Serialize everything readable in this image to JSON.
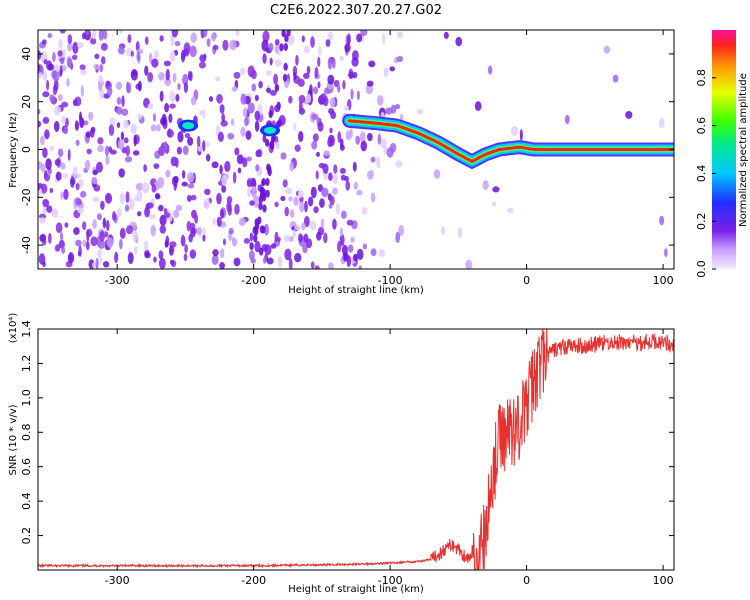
{
  "title": "C2E6.2022.307.20.27.G02",
  "colors": {
    "snr_line": "#e83030",
    "spectrum_low": "#8a2be2",
    "ridge": "#ff2020"
  },
  "chart_data": [
    {
      "type": "heatmap",
      "xlabel": "Height of straight line (km)",
      "ylabel": "Frequency (Hz)",
      "xlim": [
        -358,
        108
      ],
      "ylim": [
        -50,
        50
      ],
      "xticks": [
        -300,
        -200,
        -100,
        0,
        100
      ],
      "yticks": [
        -40,
        -20,
        0,
        20,
        40
      ],
      "colorbar": {
        "label": "Normalized spectral amplitude",
        "range": [
          0,
          1
        ],
        "ticks": [
          "0.0",
          "0.2",
          "0.4",
          "0.6",
          "0.8"
        ],
        "colormap": "rainbow (violet to red)"
      },
      "ridge": {
        "x": [
          -130,
          -110,
          -95,
          -80,
          -65,
          -50,
          -40,
          -30,
          -20,
          -5,
          5,
          30,
          60,
          90,
          108
        ],
        "y": [
          12,
          11,
          10,
          7,
          3,
          -2,
          -5,
          -2,
          0,
          1,
          0,
          0,
          0,
          0,
          0
        ]
      },
      "features": [
        {
          "x": -248,
          "y": 10
        },
        {
          "x": -188,
          "y": 8
        }
      ],
      "grid": false
    },
    {
      "type": "line",
      "xlabel": "Height of straight line (km)",
      "ylabel": "SNR (10 * v/v)",
      "y_multiplier": "(x10⁴)",
      "xlim": [
        -358,
        108
      ],
      "ylim": [
        0,
        1.4
      ],
      "xticks": [
        -300,
        -200,
        -100,
        0,
        100
      ],
      "yticks": [
        0.2,
        0.4,
        0.6,
        0.8,
        1.0,
        1.2,
        1.4
      ],
      "series": [
        {
          "x": [
            -358,
            -300,
            -250,
            -200,
            -150,
            -120,
            -100,
            -80,
            -70,
            -60,
            -55,
            -50,
            -45,
            -40,
            -35,
            -30,
            -25,
            -20,
            -15,
            -10,
            -5,
            0,
            5,
            10,
            20,
            30,
            40,
            60,
            80,
            100,
            108
          ],
          "y": [
            0.025,
            0.025,
            0.025,
            0.025,
            0.03,
            0.035,
            0.04,
            0.05,
            0.06,
            0.12,
            0.15,
            0.12,
            0.08,
            0.06,
            0.08,
            0.2,
            0.55,
            0.75,
            0.8,
            0.82,
            0.85,
            0.95,
            1.1,
            1.2,
            1.28,
            1.3,
            1.3,
            1.32,
            1.32,
            1.33,
            1.3
          ]
        }
      ],
      "grid": false
    }
  ]
}
